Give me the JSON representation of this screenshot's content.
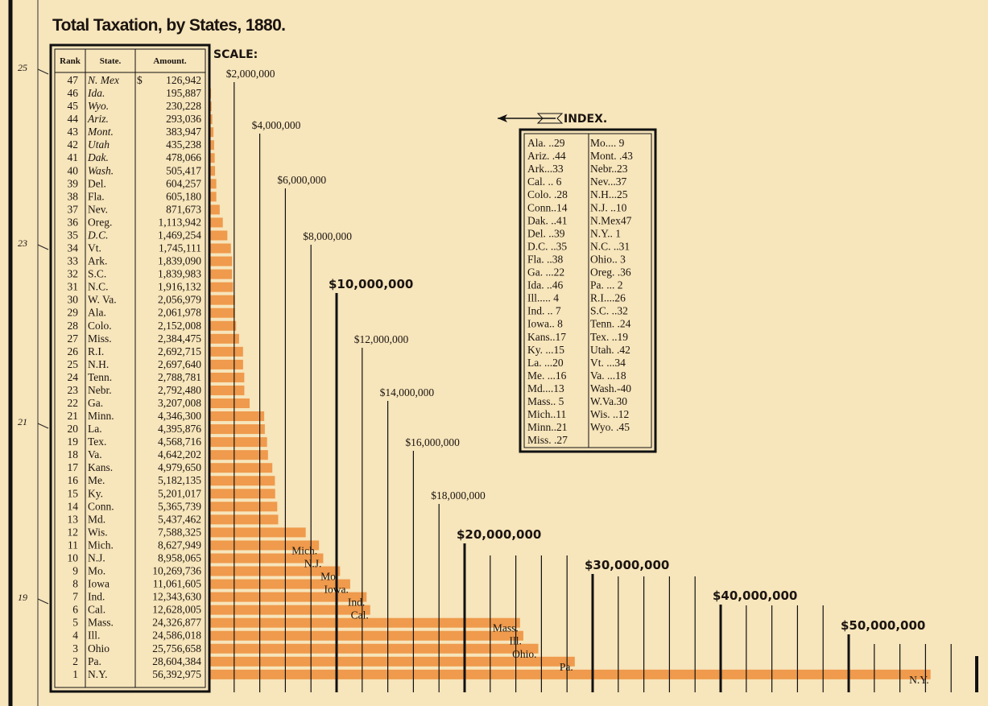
{
  "chart_data": {
    "type": "bar",
    "title": "Total Taxation, by States, 1880.",
    "scale_label": "SCALE:",
    "headers": [
      "Rank",
      "State.",
      "Amount."
    ],
    "currency": "$",
    "ranks": [
      47,
      46,
      45,
      44,
      43,
      42,
      41,
      40,
      39,
      38,
      37,
      36,
      35,
      34,
      33,
      32,
      31,
      30,
      29,
      28,
      27,
      26,
      25,
      24,
      23,
      22,
      21,
      20,
      19,
      18,
      17,
      16,
      15,
      14,
      13,
      12,
      11,
      10,
      9,
      8,
      7,
      6,
      5,
      4,
      3,
      2,
      1
    ],
    "categories": [
      "N. Mex",
      "Ida.",
      "Wyo.",
      "Ariz.",
      "Mont.",
      "Utah",
      "Dak.",
      "Wash.",
      "Del.",
      "Fla.",
      "Nev.",
      "Oreg.",
      "D.C.",
      "Vt.",
      "Ark.",
      "S.C.",
      "N.C.",
      "W. Va.",
      "Ala.",
      "Colo.",
      "Miss.",
      "R.I.",
      "N.H.",
      "Tenn.",
      "Nebr.",
      "Ga.",
      "Minn.",
      "La.",
      "Tex.",
      "Va.",
      "Kans.",
      "Me.",
      "Ky.",
      "Conn.",
      "Md.",
      "Wis.",
      "Mich.",
      "N.J.",
      "Mo.",
      "Iowa",
      "Ind.",
      "Cal.",
      "Mass.",
      "Ill.",
      "Ohio",
      "Pa.",
      "N.Y."
    ],
    "values": [
      126942,
      195887,
      230228,
      293036,
      383947,
      435238,
      478066,
      505417,
      604257,
      605180,
      871673,
      1113942,
      1469254,
      1745111,
      1839090,
      1839983,
      1916132,
      2056979,
      2061978,
      2152008,
      2384475,
      2692715,
      2697640,
      2788781,
      2792480,
      3207008,
      4346300,
      4395876,
      4568716,
      4642202,
      4979650,
      5182135,
      5201017,
      5365739,
      5437462,
      7588325,
      8627949,
      8958065,
      10269736,
      11061605,
      12343630,
      12628005,
      24326877,
      24586018,
      25756658,
      28604384,
      56392975
    ],
    "value_labels": [
      "126,942",
      "195,887",
      "230,228",
      "293,036",
      "383,947",
      "435,238",
      "478,066",
      "505,417",
      "604,257",
      "605,180",
      "871,673",
      "1,113,942",
      "1,469,254",
      "1,745,111",
      "1,839,090",
      "1,839,983",
      "1,916,132",
      "2,056,979",
      "2,061,978",
      "2,152,008",
      "2,384,475",
      "2,692,715",
      "2,697,640",
      "2,788,781",
      "2,792,480",
      "3,207,008",
      "4,346,300",
      "4,395,876",
      "4,568,716",
      "4,642,202",
      "4,979,650",
      "5,182,135",
      "5,201,017",
      "5,365,739",
      "5,437,462",
      "7,588,325",
      "8,627,949",
      "8,958,065",
      "10,269,736",
      "11,061,605",
      "12,343,630",
      "12,628,005",
      "24,326,877",
      "24,586,018",
      "25,756,658",
      "28,604,384",
      "56,392,975"
    ],
    "bar_labels": [
      null,
      null,
      null,
      null,
      null,
      null,
      null,
      null,
      null,
      null,
      null,
      null,
      null,
      null,
      null,
      null,
      null,
      null,
      null,
      null,
      null,
      null,
      null,
      null,
      null,
      null,
      null,
      null,
      null,
      null,
      null,
      null,
      null,
      null,
      null,
      null,
      "Mich.",
      "N.J.",
      "Mo.",
      "Iowa.",
      "Ind.",
      "Cal.",
      "Mass.",
      "Ill.",
      "Ohio.",
      "Pa.",
      "N.Y."
    ],
    "color": "#ef9a4c",
    "xlim": [
      0,
      60000000
    ],
    "xticks": [
      {
        "value": 2000000,
        "label": "$2,000,000"
      },
      {
        "value": 4000000,
        "label": "$4,000,000"
      },
      {
        "value": 6000000,
        "label": "$6,000,000"
      },
      {
        "value": 8000000,
        "label": "$8,000,000"
      },
      {
        "value": 10000000,
        "label": "$10,000,000"
      },
      {
        "value": 12000000,
        "label": "$12,000,000"
      },
      {
        "value": 14000000,
        "label": "$14,000,000"
      },
      {
        "value": 16000000,
        "label": "$16,000,000"
      },
      {
        "value": 18000000,
        "label": "$18,000,000"
      },
      {
        "value": 20000000,
        "label": "$20,000,000"
      },
      {
        "value": 30000000,
        "label": "$30,000,000"
      },
      {
        "value": 40000000,
        "label": "$40,000,000"
      },
      {
        "value": 50000000,
        "label": "$50,000,000"
      }
    ],
    "minor_xticks": [
      22000000,
      24000000,
      26000000,
      28000000,
      32000000,
      34000000,
      36000000,
      38000000,
      42000000,
      44000000,
      46000000,
      48000000,
      52000000,
      54000000,
      56000000,
      58000000,
      60000000
    ],
    "index_title": "INDEX.",
    "index": [
      [
        "Ala. ..29",
        "Ariz. .44",
        "Ark...33",
        "Cal. .. 6",
        "Colo. .28",
        "Conn..14",
        "Dak. ..41",
        "Del. ..39",
        "D.C. ..35",
        "Fla. ..38",
        "Ga. ...22",
        "Ida. ..46",
        "Ill..... 4",
        "Ind. .. 7",
        "Iowa.. 8",
        "Kans..17",
        "Ky. ...15",
        "La. ...20",
        "Me. ...16",
        "Md....13",
        "Mass.. 5",
        "Mich..11",
        "Minn..21",
        "Miss. .27"
      ],
      [
        "Mo.... 9",
        "Mont. .43",
        "Nebr..23",
        "Nev...37",
        "N.H...25",
        "N.J. ..10",
        "N.Mex47",
        "N.Y.. 1",
        "N.C. ..31",
        "Ohio.. 3",
        "Oreg. .36",
        "Pa. ... 2",
        "R.I....26",
        "S.C. ..32",
        "Tenn. .24",
        "Tex. ..19",
        "Utah. .42",
        "Vt. ...34",
        "Va. ...18",
        "Wash.-40",
        "W.Va.30",
        "Wis. ..12",
        "Wyo. .45"
      ]
    ],
    "margin_labels": [
      25,
      23,
      21,
      19
    ]
  }
}
